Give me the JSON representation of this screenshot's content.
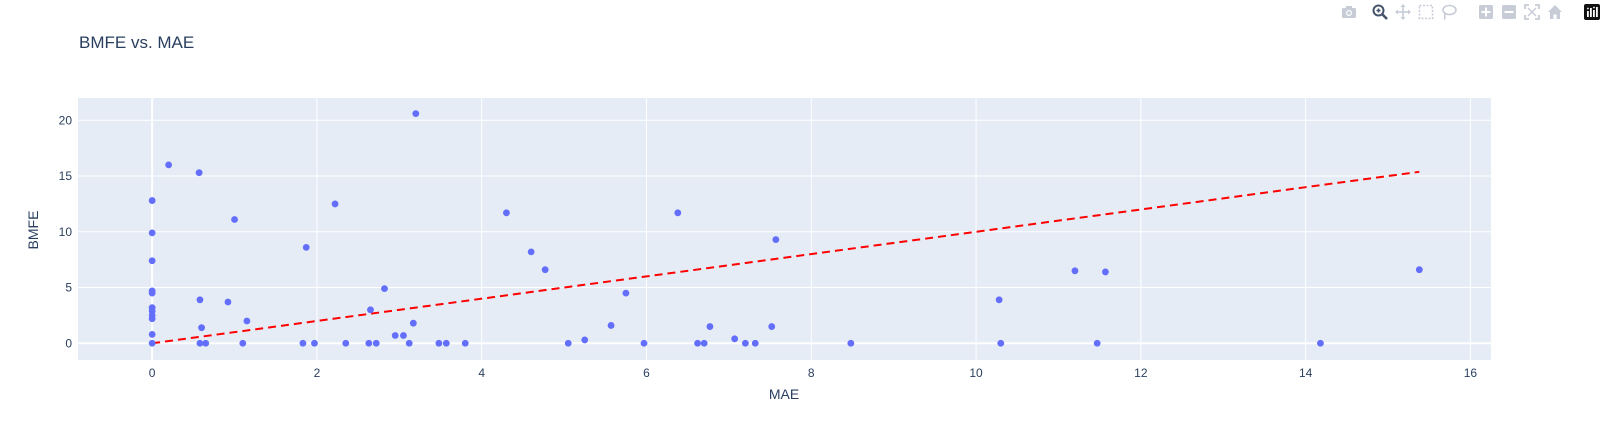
{
  "modebar": {
    "items": [
      {
        "name": "camera-icon",
        "title": "Download plot as a png"
      },
      {
        "name": "zoom-icon",
        "title": "Zoom"
      },
      {
        "name": "pan-icon",
        "title": "Pan"
      },
      {
        "name": "box-select-icon",
        "title": "Box Select"
      },
      {
        "name": "lasso-select-icon",
        "title": "Lasso Select"
      },
      {
        "name": "zoom-in-icon",
        "title": "Zoom in"
      },
      {
        "name": "zoom-out-icon",
        "title": "Zoom out"
      },
      {
        "name": "autoscale-icon",
        "title": "Autoscale"
      },
      {
        "name": "reset-axes-icon",
        "title": "Reset axes"
      },
      {
        "name": "plotly-logo-icon",
        "title": "Produced with Plotly"
      }
    ]
  },
  "colors": {
    "plot_bg": "#e5ecf6",
    "grid": "#ffffff",
    "marker": "#636efa",
    "trendline": "#ff0000",
    "text": "#2a3f5f"
  },
  "chart_data": {
    "type": "scatter",
    "title": "BMFE vs. MAE",
    "xlabel": "MAE",
    "ylabel": "BMFE",
    "xlim": [
      -0.9,
      16.25
    ],
    "ylim": [
      -1.5,
      22.0
    ],
    "xticks": [
      0,
      2,
      4,
      6,
      8,
      10,
      12,
      14,
      16
    ],
    "yticks": [
      0,
      5,
      10,
      15,
      20
    ],
    "grid": true,
    "legend": "none",
    "series": [
      {
        "mode": "markers",
        "points": [
          [
            0,
            0
          ],
          [
            0,
            0.8
          ],
          [
            0,
            2.2
          ],
          [
            0,
            2.5
          ],
          [
            0,
            2.9
          ],
          [
            0,
            3.2
          ],
          [
            0,
            4.5
          ],
          [
            0,
            4.7
          ],
          [
            0,
            7.4
          ],
          [
            0,
            9.9
          ],
          [
            0,
            12.8
          ],
          [
            0.2,
            16.0
          ],
          [
            0.57,
            15.3
          ],
          [
            0.58,
            3.9
          ],
          [
            0.6,
            1.4
          ],
          [
            0.58,
            0
          ],
          [
            0.65,
            0
          ],
          [
            0.92,
            3.7
          ],
          [
            1.0,
            11.1
          ],
          [
            1.1,
            0
          ],
          [
            1.15,
            2.0
          ],
          [
            1.83,
            0
          ],
          [
            1.87,
            8.6
          ],
          [
            1.97,
            0
          ],
          [
            2.22,
            12.5
          ],
          [
            2.35,
            0
          ],
          [
            2.63,
            0
          ],
          [
            2.65,
            3.0
          ],
          [
            2.72,
            0
          ],
          [
            2.82,
            4.9
          ],
          [
            2.95,
            0.7
          ],
          [
            3.05,
            0.7
          ],
          [
            3.12,
            0
          ],
          [
            3.17,
            1.8
          ],
          [
            3.2,
            20.6
          ],
          [
            3.48,
            0
          ],
          [
            3.57,
            0
          ],
          [
            3.8,
            0
          ],
          [
            4.3,
            11.7
          ],
          [
            4.6,
            8.2
          ],
          [
            4.77,
            6.6
          ],
          [
            5.05,
            0
          ],
          [
            5.25,
            0.3
          ],
          [
            5.57,
            1.6
          ],
          [
            5.75,
            4.5
          ],
          [
            5.97,
            0
          ],
          [
            6.38,
            11.7
          ],
          [
            6.62,
            0
          ],
          [
            6.7,
            0
          ],
          [
            6.77,
            1.5
          ],
          [
            7.07,
            0.4
          ],
          [
            7.2,
            0
          ],
          [
            7.32,
            0
          ],
          [
            7.52,
            1.5
          ],
          [
            7.57,
            9.3
          ],
          [
            8.48,
            0
          ],
          [
            10.28,
            3.9
          ],
          [
            10.3,
            0
          ],
          [
            11.2,
            6.5
          ],
          [
            11.47,
            0
          ],
          [
            11.57,
            6.4
          ],
          [
            14.18,
            0
          ],
          [
            15.38,
            6.6
          ]
        ]
      },
      {
        "mode": "lines",
        "style": "dash",
        "points": [
          [
            0,
            0
          ],
          [
            15.38,
            15.38
          ]
        ]
      }
    ]
  }
}
